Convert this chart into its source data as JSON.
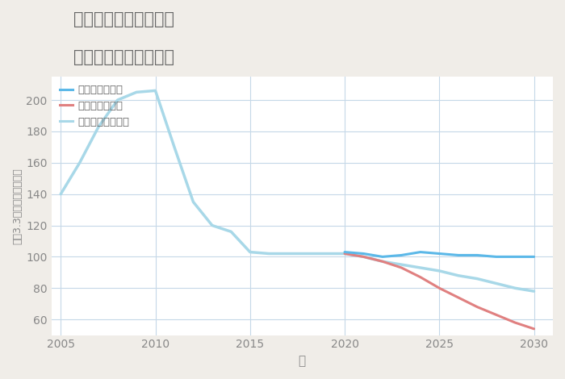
{
  "title_line1": "奈良県生駒市俵口町の",
  "title_line2": "中古戸建ての価格推移",
  "xlabel": "年",
  "ylabel": "坪（3.3㎡）単価（万円）",
  "background_color": "#f0ede8",
  "plot_bg_color": "#ffffff",
  "grid_color": "#c5d8e8",
  "title_color": "#666666",
  "tick_color": "#888888",
  "ylim": [
    50,
    215
  ],
  "xlim": [
    2004.5,
    2031
  ],
  "yticks": [
    60,
    80,
    100,
    120,
    140,
    160,
    180,
    200
  ],
  "xticks": [
    2005,
    2010,
    2015,
    2020,
    2025,
    2030
  ],
  "good_scenario": {
    "label": "グッドシナリオ",
    "color": "#5bb8e8",
    "linewidth": 2.2,
    "years": [
      2020,
      2021,
      2022,
      2023,
      2024,
      2025,
      2026,
      2027,
      2028,
      2029,
      2030
    ],
    "values": [
      103,
      102,
      100,
      101,
      103,
      102,
      101,
      101,
      100,
      100,
      100
    ]
  },
  "bad_scenario": {
    "label": "バッドシナリオ",
    "color": "#e08080",
    "linewidth": 2.2,
    "years": [
      2020,
      2021,
      2022,
      2023,
      2024,
      2025,
      2026,
      2027,
      2028,
      2029,
      2030
    ],
    "values": [
      102,
      100,
      97,
      93,
      87,
      80,
      74,
      68,
      63,
      58,
      54
    ]
  },
  "normal_scenario": {
    "label": "ノーマルシナリオ",
    "color": "#a8d8e8",
    "linewidth": 2.5,
    "years": [
      2005,
      2006,
      2007,
      2008,
      2009,
      2010,
      2011,
      2012,
      2013,
      2014,
      2015,
      2016,
      2017,
      2018,
      2019,
      2020,
      2021,
      2022,
      2023,
      2024,
      2025,
      2026,
      2027,
      2028,
      2029,
      2030
    ],
    "values": [
      140,
      160,
      183,
      200,
      205,
      206,
      170,
      135,
      120,
      116,
      103,
      102,
      102,
      102,
      102,
      102,
      100,
      97,
      95,
      93,
      91,
      88,
      86,
      83,
      80,
      78
    ]
  },
  "legend": {
    "good_label": "グッドシナリオ",
    "bad_label": "バッドシナリオ",
    "normal_label": "ノーマルシナリオ"
  }
}
